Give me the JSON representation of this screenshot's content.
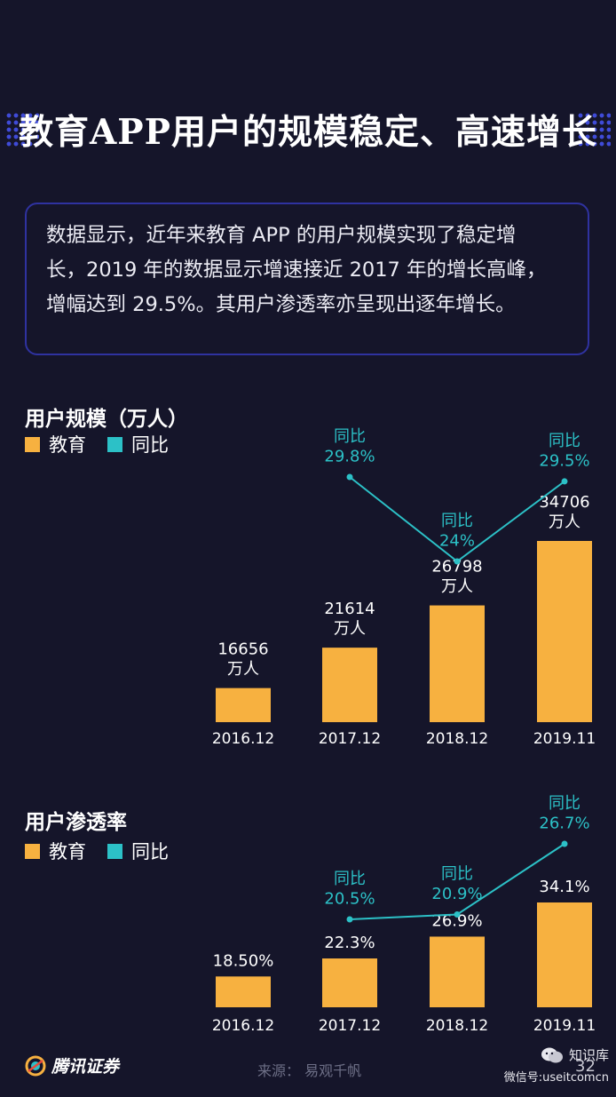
{
  "title": "教育APP用户的规模稳定、高速增长",
  "summary": {
    "lines": [
      "数据显示，近年来教育 APP 的用户规模实现了稳定增",
      "长，2019 年的数据显示增速接近 2017 年的增长高峰，",
      "增幅达到 29.5%。其用户渗透率亦呈现出逐年增长。"
    ]
  },
  "legend": {
    "edu": "教育",
    "yoy": "同比"
  },
  "colors": {
    "bar": "#f7b140",
    "line": "#2cc1c7",
    "background": "#15152a",
    "border": "#2f32a0"
  },
  "footer": {
    "logo": "腾讯证券",
    "source": "来源： 易观千帆",
    "page": "32",
    "watermark_name": "知识库",
    "watermark_sub": "微信号:useitcomcn"
  },
  "chart_data": [
    {
      "type": "bar",
      "title": "用户规模（万人）",
      "categories": [
        "2016.12",
        "2017.12",
        "2018.12",
        "2019.11"
      ],
      "series": [
        {
          "name": "教育",
          "values": [
            16656,
            21614,
            26798,
            34706
          ],
          "labels": [
            "16656\n万人",
            "21614\n万人",
            "26798\n万人",
            "34706\n万人"
          ]
        },
        {
          "name": "同比",
          "type": "line",
          "values": [
            null,
            29.8,
            24,
            29.5
          ],
          "labels": [
            null,
            "同比\n29.8%",
            "同比\n24%",
            "同比\n29.5%"
          ]
        }
      ]
    },
    {
      "type": "bar",
      "title": "用户渗透率",
      "categories": [
        "2016.12",
        "2017.12",
        "2018.12",
        "2019.11"
      ],
      "series": [
        {
          "name": "教育",
          "values": [
            18.5,
            22.3,
            26.9,
            34.1
          ],
          "labels": [
            "18.50%",
            "22.3%",
            "26.9%",
            "34.1%"
          ]
        },
        {
          "name": "同比",
          "type": "line",
          "values": [
            null,
            20.5,
            20.9,
            26.7
          ],
          "labels": [
            null,
            "同比\n20.5%",
            "同比\n20.9%",
            "同比\n26.7%"
          ]
        }
      ]
    }
  ]
}
